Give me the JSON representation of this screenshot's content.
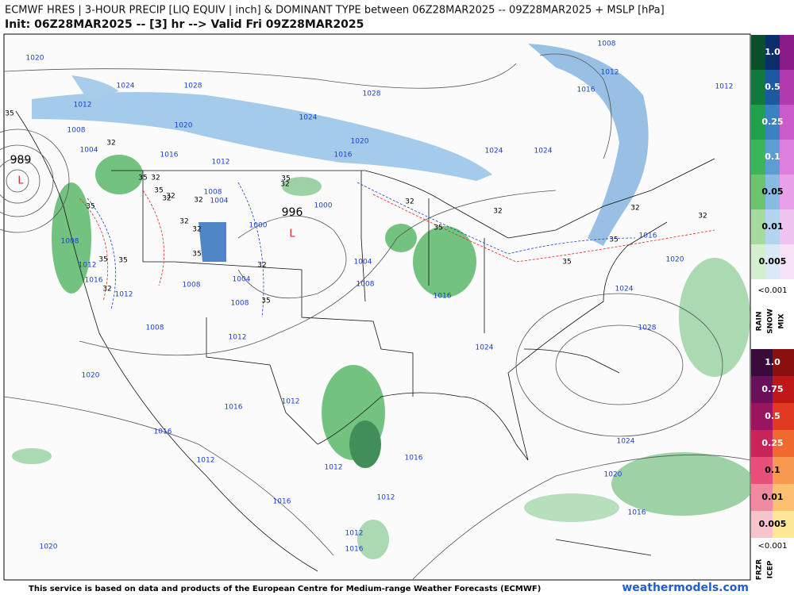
{
  "header": {
    "title": "ECMWF HRES | 3-HOUR PRECIP [LIQ EQUIV | inch] & DOMINANT TYPE between 06Z28MAR2025 -- 09Z28MAR2025 + MSLP [hPa]",
    "subtitle": "Init: 06Z28MAR2025 -- [3] hr --> Valid Fri 09Z28MAR2025"
  },
  "map": {
    "isobar_labels": [
      "1020",
      "1024",
      "1028",
      "1012",
      "1020",
      "1008",
      "1004",
      "1016",
      "1012",
      "1024",
      "1028",
      "1020",
      "1016",
      "1008",
      "1012",
      "1016",
      "1012",
      "1024",
      "1024",
      "1008",
      "1004",
      "1000",
      "1000",
      "1004",
      "1008",
      "1016",
      "1024",
      "1024",
      "1028",
      "1020",
      "1016",
      "1008",
      "1012",
      "1016",
      "1012",
      "1008",
      "1004",
      "1008",
      "1012",
      "1008",
      "1020",
      "1016",
      "1012",
      "1016",
      "1012",
      "1012",
      "1016",
      "1024",
      "1020",
      "1016",
      "1012",
      "1016",
      "1012",
      "1016",
      "1020"
    ],
    "contour_labels": [
      "35",
      "32",
      "32",
      "35",
      "32",
      "32",
      "35",
      "35",
      "32",
      "35",
      "32",
      "35",
      "35",
      "32",
      "32",
      "35",
      "32",
      "32",
      "35",
      "32",
      "32",
      "35",
      "35",
      "32",
      "32",
      "35"
    ],
    "pressure_centers": [
      "989",
      "996"
    ],
    "low_markers": [
      "L",
      "L"
    ]
  },
  "legend": {
    "rain_snow_mix": {
      "levels": [
        "1.0",
        "0.5",
        "0.25",
        "0.1",
        "0.05",
        "0.01",
        "0.005"
      ],
      "below": "<0.001",
      "types": [
        "RAIN",
        "SNOW",
        "MIX"
      ]
    },
    "freezing": {
      "levels": [
        "1.0",
        "0.75",
        "0.5",
        "0.25",
        "0.1",
        "0.01",
        "0.005"
      ],
      "below": "<0.001",
      "types": [
        "FRZR",
        "ICEP"
      ]
    }
  },
  "footer": {
    "credit": "This service is based on data and products of the European Centre for Medium-range Weather Forecasts (ECMWF)",
    "site": "weathermodels.com"
  }
}
